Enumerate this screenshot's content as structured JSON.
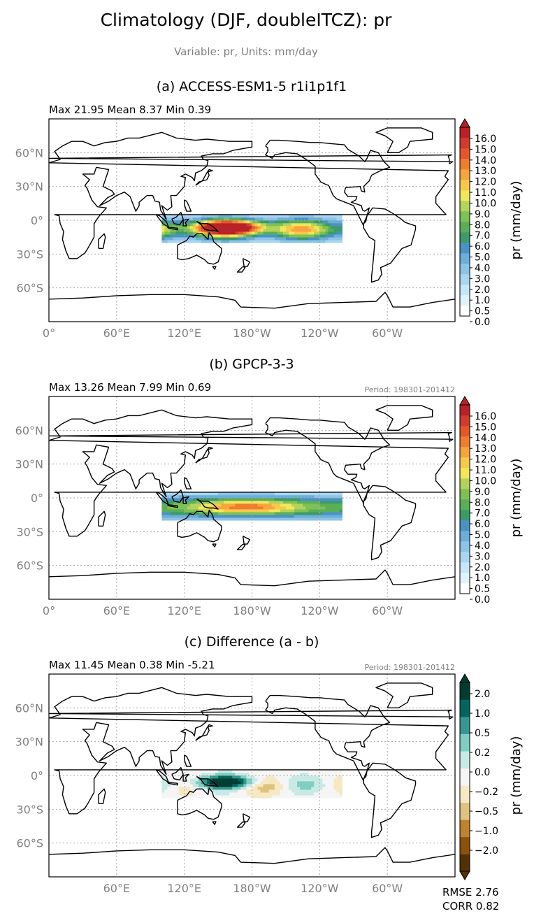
{
  "title": "Climatology (DJF, doubleITCZ): pr",
  "subtitle": "Variable: pr, Units: mm/day",
  "colors": {
    "axis_text": "#808080",
    "grid": "#aaaaaa",
    "coast": "#000000",
    "pr_levels": [
      "#ffffff",
      "#e0f3fb",
      "#c6e7f7",
      "#a9d6f0",
      "#8dc3e6",
      "#6aaed9",
      "#4a92c6",
      "#3c9a6a",
      "#5aae58",
      "#7dc155",
      "#b4d35a",
      "#f2e65a",
      "#f7c84b",
      "#f6a53d",
      "#ef7d2e",
      "#e4562a",
      "#d13a2c",
      "#b82227"
    ],
    "diff_levels": [
      "#543005",
      "#8c510a",
      "#bf812d",
      "#dfc27d",
      "#f6e8c3",
      "#f5f5f5",
      "#c7eae5",
      "#80cdc1",
      "#35978f",
      "#01665e",
      "#003c30"
    ]
  },
  "chart_data": [
    {
      "type": "heatmap",
      "panel_title": "(a) ACCESS-ESM1-5 r1i1p1f1",
      "stats": "Max 21.95 Mean 8.37 Min 0.39",
      "period": "",
      "region": {
        "lon": [
          100,
          260
        ],
        "lat": [
          -20,
          5
        ]
      },
      "field_description": "Tropical Pacific precipitation, strong maximum near 150E-180 at 0-10S",
      "x_ticks": [
        "0°",
        "60°E",
        "120°E",
        "180°W",
        "120°W",
        "60°W"
      ],
      "y_ticks": [
        "60°N",
        "30°N",
        "0°",
        "30°S",
        "60°S"
      ],
      "xlim": [
        0,
        360
      ],
      "ylim": [
        -90,
        90
      ],
      "colorbar": {
        "label": "pr (mm/day)",
        "ticks": [
          "16.0",
          "15.0",
          "14.0",
          "13.0",
          "12.0",
          "11.0",
          "10.0",
          "9.0",
          "8.0",
          "7.0",
          "6.0",
          "5.0",
          "4.0",
          "3.0",
          "2.0",
          "1.0",
          "0.5",
          "0.0"
        ],
        "extend": "max"
      }
    },
    {
      "type": "heatmap",
      "panel_title": "(b) GPCP-3-3",
      "stats": "Max 13.26 Mean 7.99 Min 0.69",
      "period": "Period: 198301-201412",
      "region": {
        "lon": [
          100,
          260
        ],
        "lat": [
          -20,
          5
        ]
      },
      "field_description": "Tropical Pacific precipitation, moderate maximum along 5-15S",
      "x_ticks": [
        "0°",
        "60°E",
        "120°E",
        "180°W",
        "120°W",
        "60°W"
      ],
      "y_ticks": [
        "60°N",
        "30°N",
        "0°",
        "30°S",
        "60°S"
      ],
      "xlim": [
        0,
        360
      ],
      "ylim": [
        -90,
        90
      ],
      "colorbar": {
        "label": "pr (mm/day)",
        "ticks": [
          "16.0",
          "15.0",
          "14.0",
          "13.0",
          "12.0",
          "11.0",
          "10.0",
          "9.0",
          "8.0",
          "7.0",
          "6.0",
          "5.0",
          "4.0",
          "3.0",
          "2.0",
          "1.0",
          "0.5",
          "0.0"
        ],
        "extend": "max"
      }
    },
    {
      "type": "heatmap",
      "panel_title": "(c) Difference (a - b)",
      "stats": "Max 11.45 Mean 0.38 Min -5.21",
      "period": "Period: 198301-201412",
      "region": {
        "lon": [
          100,
          260
        ],
        "lat": [
          -20,
          5
        ]
      },
      "field_description": "Model minus observation precipitation difference over tropical Pacific",
      "x_ticks": [
        "",
        "60°E",
        "120°E",
        "180°W",
        "120°W",
        "60°W"
      ],
      "y_ticks": [
        "60°N",
        "30°N",
        "0°",
        "30°S",
        "60°S"
      ],
      "xlim": [
        0,
        360
      ],
      "ylim": [
        -90,
        90
      ],
      "colorbar": {
        "label": "pr (mm/day)",
        "ticks": [
          "2.0",
          "1.0",
          "0.5",
          "0.2",
          "0.0",
          "−0.2",
          "−0.5",
          "−1.0",
          "−2.0"
        ],
        "extend": "both"
      },
      "metrics": [
        "RMSE 2.76",
        "CORR 0.82"
      ]
    }
  ]
}
